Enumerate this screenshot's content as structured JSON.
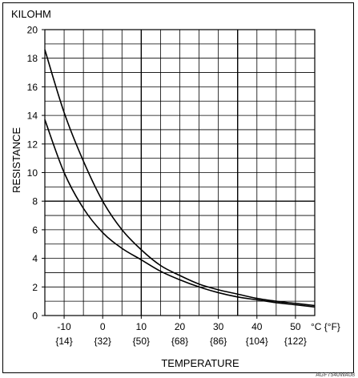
{
  "chart_data": {
    "type": "line",
    "unit_label": "KILOHM",
    "xlabel": "TEMPERATURE",
    "ylabel": "RESISTANCE",
    "x_unit_label": "°C {°F}",
    "xlim": [
      -15,
      55
    ],
    "ylim": [
      0,
      20
    ],
    "x_ticks": [
      {
        "c": "-10",
        "f": "{14}"
      },
      {
        "c": "0",
        "f": "{32}"
      },
      {
        "c": "10",
        "f": "{50}"
      },
      {
        "c": "20",
        "f": "{68}"
      },
      {
        "c": "30",
        "f": "{86}"
      },
      {
        "c": "40",
        "f": "{104}"
      },
      {
        "c": "50",
        "f": "{122}"
      }
    ],
    "y_ticks": [
      "0",
      "2",
      "4",
      "6",
      "8",
      "10",
      "12",
      "14",
      "16",
      "18",
      "20"
    ],
    "grid": true,
    "series": [
      {
        "x": [
          -15,
          -10,
          -5,
          0,
          5,
          10,
          15,
          20,
          25,
          30,
          35,
          40,
          45,
          50,
          55
        ],
        "values": [
          18.6,
          14.2,
          10.8,
          8.0,
          6.0,
          4.6,
          3.5,
          2.8,
          2.2,
          1.8,
          1.5,
          1.2,
          1.0,
          0.85,
          0.7
        ]
      },
      {
        "x": [
          -15,
          -10,
          -5,
          0,
          5,
          10,
          15,
          20,
          25,
          30,
          35,
          40,
          45,
          50,
          55
        ],
        "values": [
          13.7,
          10.0,
          7.5,
          5.8,
          4.7,
          3.9,
          3.1,
          2.5,
          2.0,
          1.6,
          1.3,
          1.1,
          0.9,
          0.75,
          0.6
        ]
      }
    ]
  },
  "footer": {
    "code": "AGF7540WA08"
  }
}
